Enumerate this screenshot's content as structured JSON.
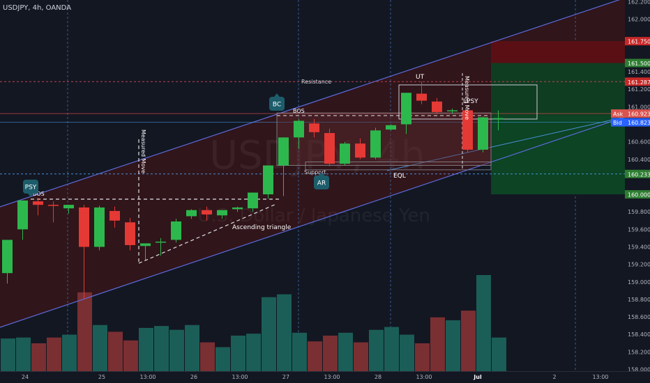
{
  "header": {
    "symbol_line": "USDJPY, 4h, OANDA"
  },
  "watermark": {
    "big": "USDJPY, 4h",
    "sub": "U.S. Dollar / Japanese Yen"
  },
  "colors": {
    "background": "#131722",
    "bull": "#26a69a",
    "bull_candle": "#2db84d",
    "bear": "#e53935",
    "bull_volume": "#1b5e57",
    "bear_volume": "#7a2f32",
    "channel_line": "#5d6bdc",
    "channel_fill": "#3b1518",
    "dashed_dotted": "#3a6fb0",
    "resistance_line": "#c2434a",
    "target_zone": "#0f3d22",
    "stop_zone": "#5a0f14",
    "label_badge": "#1d5d6b",
    "ask_tag": "#d9534f",
    "bid_tag": "#2962ff"
  },
  "chart_data": {
    "type": "candlestick",
    "title": "USDJPY, 4h, OANDA",
    "ylim": [
      157.98,
      162.22
    ],
    "y_ticks": [
      "162.200",
      "162.000",
      "161.750",
      "161.500",
      "161.400",
      "161.287",
      "161.200",
      "161.000",
      "160.923",
      "160.823",
      "160.600",
      "160.400",
      "160.233",
      "160.000",
      "159.800",
      "159.600",
      "159.400",
      "159.200",
      "159.000",
      "158.800",
      "158.600",
      "158.400",
      "158.200",
      "158.000"
    ],
    "x_ticks": [
      {
        "i": 1.5,
        "label": "24"
      },
      {
        "i": 6.5,
        "label": "25"
      },
      {
        "i": 9.5,
        "label": "13:00"
      },
      {
        "i": 12.5,
        "label": "26"
      },
      {
        "i": 15.5,
        "label": "13:00"
      },
      {
        "i": 18.5,
        "label": "27"
      },
      {
        "i": 21.5,
        "label": "13:00"
      },
      {
        "i": 24.5,
        "label": "28"
      },
      {
        "i": 27.5,
        "label": "13:00"
      },
      {
        "i": 31.0,
        "label": "Jul"
      },
      {
        "i": 36.0,
        "label": "2"
      },
      {
        "i": 39.0,
        "label": "13:00"
      }
    ],
    "candles": [
      {
        "o": 159.1,
        "h": 159.48,
        "l": 158.98,
        "c": 159.48
      },
      {
        "o": 159.6,
        "h": 159.93,
        "l": 159.48,
        "c": 159.93
      },
      {
        "o": 159.92,
        "h": 159.96,
        "l": 159.76,
        "c": 159.88
      },
      {
        "o": 159.88,
        "h": 159.92,
        "l": 159.68,
        "c": 159.87
      },
      {
        "o": 159.84,
        "h": 159.88,
        "l": 159.78,
        "c": 159.88
      },
      {
        "o": 159.85,
        "h": 159.88,
        "l": 158.8,
        "c": 159.4
      },
      {
        "o": 159.4,
        "h": 159.87,
        "l": 159.36,
        "c": 159.85
      },
      {
        "o": 159.81,
        "h": 159.86,
        "l": 159.62,
        "c": 159.7
      },
      {
        "o": 159.68,
        "h": 159.73,
        "l": 159.36,
        "c": 159.42
      },
      {
        "o": 159.41,
        "h": 159.44,
        "l": 159.25,
        "c": 159.44
      },
      {
        "o": 159.45,
        "h": 159.5,
        "l": 159.3,
        "c": 159.46
      },
      {
        "o": 159.48,
        "h": 159.72,
        "l": 159.45,
        "c": 159.69
      },
      {
        "o": 159.75,
        "h": 159.83,
        "l": 159.72,
        "c": 159.82
      },
      {
        "o": 159.82,
        "h": 159.86,
        "l": 159.7,
        "c": 159.77
      },
      {
        "o": 159.76,
        "h": 159.82,
        "l": 159.72,
        "c": 159.82
      },
      {
        "o": 159.83,
        "h": 159.86,
        "l": 159.8,
        "c": 159.85
      },
      {
        "o": 159.84,
        "h": 160.02,
        "l": 159.8,
        "c": 160.02
      },
      {
        "o": 160.0,
        "h": 160.33,
        "l": 159.95,
        "c": 160.33
      },
      {
        "o": 160.33,
        "h": 160.65,
        "l": 159.98,
        "c": 160.65
      },
      {
        "o": 160.65,
        "h": 160.86,
        "l": 160.52,
        "c": 160.84
      },
      {
        "o": 160.81,
        "h": 160.86,
        "l": 160.65,
        "c": 160.71
      },
      {
        "o": 160.7,
        "h": 160.75,
        "l": 160.32,
        "c": 160.35
      },
      {
        "o": 160.35,
        "h": 160.6,
        "l": 160.33,
        "c": 160.58
      },
      {
        "o": 160.58,
        "h": 160.64,
        "l": 160.4,
        "c": 160.42
      },
      {
        "o": 160.42,
        "h": 160.76,
        "l": 160.4,
        "c": 160.73
      },
      {
        "o": 160.74,
        "h": 160.8,
        "l": 160.73,
        "c": 160.79
      },
      {
        "o": 160.8,
        "h": 161.16,
        "l": 160.69,
        "c": 161.16
      },
      {
        "o": 161.15,
        "h": 161.29,
        "l": 161.03,
        "c": 161.07
      },
      {
        "o": 161.06,
        "h": 161.1,
        "l": 160.92,
        "c": 160.94
      },
      {
        "o": 160.95,
        "h": 160.98,
        "l": 160.92,
        "c": 160.96
      },
      {
        "o": 160.96,
        "h": 160.97,
        "l": 160.48,
        "c": 160.51
      },
      {
        "o": 160.51,
        "h": 160.89,
        "l": 160.48,
        "c": 160.88
      },
      {
        "o": 160.86,
        "h": 160.96,
        "l": 160.73,
        "c": 160.87
      }
    ],
    "volume_max": 1.0,
    "volume": [
      0.34,
      0.35,
      0.29,
      0.35,
      0.38,
      0.82,
      0.48,
      0.41,
      0.32,
      0.45,
      0.47,
      0.43,
      0.48,
      0.3,
      0.25,
      0.37,
      0.39,
      0.77,
      0.8,
      0.4,
      0.31,
      0.37,
      0.4,
      0.3,
      0.43,
      0.46,
      0.38,
      0.29,
      0.56,
      0.53,
      0.63,
      1.0,
      0.35
    ]
  },
  "annotations": {
    "resistance": "Resistance",
    "support": "Support",
    "ascending_triangle": "Ascending triangle",
    "measured_move": "Measured Move",
    "measured_move_2": "Measured Move",
    "bos_left": "BOS",
    "bos_mid": "BOS",
    "ut": "UT",
    "lpsy": "LPSY",
    "eql": "EQL",
    "psy": "PSY",
    "bc": "BC",
    "ar": "AR"
  },
  "price_tags": {
    "stop": "161.750",
    "target_top": "161.500",
    "resistance": "161.287",
    "ask_label": "Ask",
    "ask": "160.923",
    "bid_label": "Bid",
    "bid": "160.823",
    "support": "160.233",
    "target": "160.000"
  }
}
